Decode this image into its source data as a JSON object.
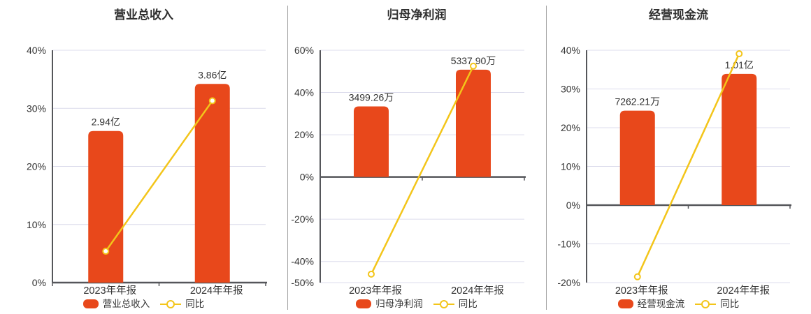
{
  "palette": {
    "bar_color": "#e8481b",
    "line_color": "#f3c51a",
    "marker_fill": "#ffffff",
    "grid_color": "#dcdcec",
    "axis_color": "#55565a",
    "text_color": "#333333",
    "title_color": "#2f2f2f",
    "divider_color": "#a3a3a3",
    "background": "#ffffff"
  },
  "chart_data": [
    {
      "type": "bar+line",
      "title": "营业总收入",
      "categories": [
        "2023年年报",
        "2024年年报"
      ],
      "bar_series": {
        "name": "营业总收入",
        "value_labels": [
          "2.94亿",
          "3.86亿"
        ],
        "bar_top_pct": [
          26.1,
          34.2
        ]
      },
      "line_series": {
        "name": "同比",
        "values_pct": [
          5.4,
          31.3
        ]
      },
      "ylim": [
        0,
        40
      ],
      "yticks": [
        40,
        30,
        20,
        10,
        0
      ],
      "ytick_labels": [
        "40%",
        "30%",
        "20%",
        "10%",
        "0%"
      ],
      "grid": true,
      "legend_position": "bottom"
    },
    {
      "type": "bar+line",
      "title": "归母净利润",
      "categories": [
        "2023年年报",
        "2024年年报"
      ],
      "bar_series": {
        "name": "归母净利润",
        "value_labels": [
          "3499.26万",
          "5337.90万"
        ],
        "bar_top_pct": [
          33.4,
          50.8
        ]
      },
      "line_series": {
        "name": "同比",
        "values_pct": [
          -46.0,
          52.5
        ]
      },
      "ylim": [
        -50,
        60
      ],
      "yticks": [
        60,
        40,
        20,
        0,
        -20,
        -40,
        -50
      ],
      "ytick_labels": [
        "60%",
        "40%",
        "20%",
        "0%",
        "-20%",
        "-40%",
        "-50%"
      ],
      "grid": true,
      "legend_position": "bottom"
    },
    {
      "type": "bar+line",
      "title": "经营现金流",
      "categories": [
        "2023年年报",
        "2024年年报"
      ],
      "bar_series": {
        "name": "经营现金流",
        "value_labels": [
          "7262.21万",
          "1.01亿"
        ],
        "bar_top_pct": [
          24.4,
          33.9
        ]
      },
      "line_series": {
        "name": "同比",
        "values_pct": [
          -18.5,
          39.1
        ]
      },
      "ylim": [
        -20,
        40
      ],
      "yticks": [
        40,
        30,
        20,
        10,
        0,
        -10,
        -20
      ],
      "ytick_labels": [
        "40%",
        "30%",
        "20%",
        "10%",
        "0%",
        "-10%",
        "-20%"
      ],
      "grid": true,
      "legend_position": "bottom"
    }
  ]
}
